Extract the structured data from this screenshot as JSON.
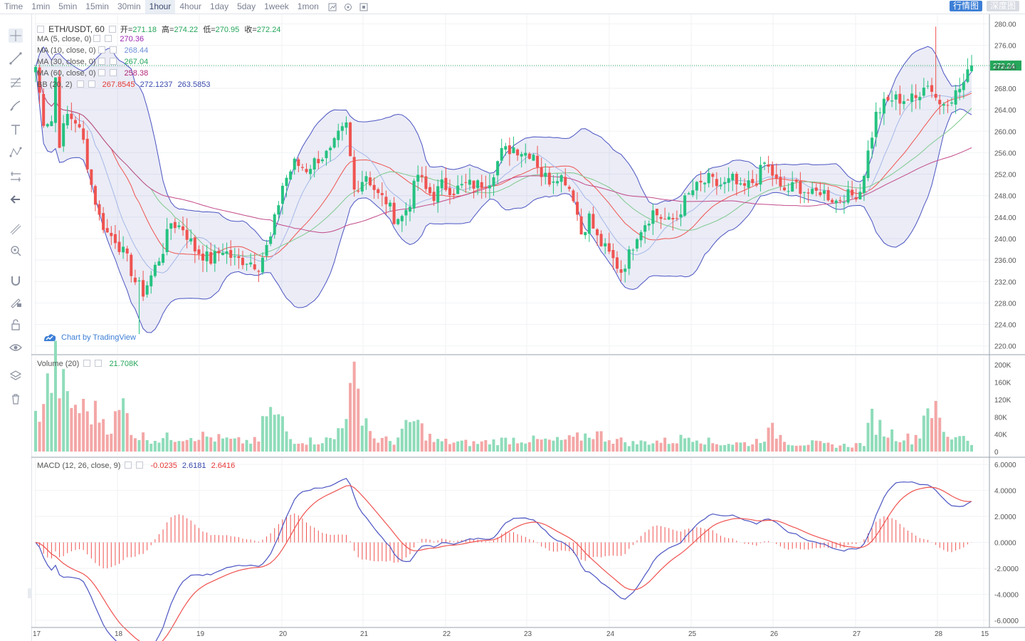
{
  "toolbar": {
    "timeframes": [
      "Time",
      "1min",
      "5min",
      "15min",
      "30min",
      "1hour",
      "4hour",
      "1day",
      "5day",
      "1week",
      "1mon"
    ],
    "active": "1hour",
    "icons": [
      "candle-type-icon",
      "indicators-icon",
      "fullscreen-icon"
    ],
    "right_buttons": [
      {
        "label": "行情图",
        "active": true
      },
      {
        "label": "深度图",
        "active": false
      }
    ]
  },
  "left_tools": [
    "crosshair-icon",
    "trendline-icon",
    "fib-icon",
    "brush-icon",
    "text-icon",
    "pattern-icon",
    "measure-icon",
    "back-arrow-icon",
    "ruler-icon",
    "zoom-icon",
    "magnet-icon",
    "lock-draw-icon",
    "lock-icon",
    "eye-icon",
    "layers-icon",
    "trash-icon"
  ],
  "legend": {
    "symbol": "ETH/USDT, 60",
    "open_label": "开",
    "open": "271.18",
    "high_label": "高",
    "high": "274.22",
    "low_label": "低",
    "low": "270.95",
    "close_label": "收",
    "close": "272.24",
    "ma": [
      {
        "name": "MA (5, close, 0)",
        "value": "270.36",
        "color": "#9c27b0"
      },
      {
        "name": "MA (10, close, 0)",
        "value": "268.44",
        "color": "#6c8fd6"
      },
      {
        "name": "MA (30, close, 0)",
        "value": "267.04",
        "color": "#26a65b"
      },
      {
        "name": "MA (60, close, 0)",
        "value": "258.38",
        "color": "#b0277a"
      }
    ],
    "bb": {
      "name": "BB (20, 2)",
      "values": [
        "267.8545",
        "272.1237",
        "263.5853"
      ],
      "colors": [
        "#e53935",
        "#3949ab",
        "#3949ab"
      ]
    },
    "volume": {
      "name": "Volume (20)",
      "value": "21.708K"
    },
    "macd": {
      "name": "MACD (12, 26, close, 9)",
      "values": [
        "-0.0235",
        "2.6181",
        "2.6416"
      ],
      "colors": [
        "#e53935",
        "#3949ab",
        "#e53935"
      ]
    }
  },
  "watermark": "Chart by TradingView",
  "last_price": "272.24",
  "chart_data": {
    "type": "candlestick",
    "symbol": "ETH/USDT",
    "interval": "60",
    "price_axis": {
      "ticks": [
        "280.00",
        "276.00",
        "272.00",
        "268.00",
        "264.00",
        "260.00",
        "256.00",
        "252.00",
        "248.00",
        "244.00",
        "240.00",
        "236.00",
        "232.00",
        "228.00",
        "224.00",
        "220.00"
      ],
      "range": [
        218.5,
        281.8
      ]
    },
    "volume_axis": {
      "ticks": [
        "200K",
        "160K",
        "120K",
        "80K",
        "40K",
        "0"
      ],
      "range": [
        0,
        220000
      ]
    },
    "macd_axis": {
      "ticks": [
        "6.0000",
        "4.0000",
        "2.0000",
        "0.0000",
        "-2.0000",
        "-4.0000",
        "-6.0000"
      ],
      "range": [
        -6.5,
        6.5
      ]
    },
    "x_axis": {
      "ticks": [
        "17",
        "18",
        "19",
        "20",
        "21",
        "22",
        "23",
        "24",
        "25",
        "26",
        "27",
        "28",
        "15"
      ]
    },
    "close_anchors": [
      [
        0,
        272
      ],
      [
        2,
        262
      ],
      [
        4,
        262
      ],
      [
        5,
        270
      ],
      [
        6,
        258
      ],
      [
        8,
        263
      ],
      [
        10,
        262
      ],
      [
        12,
        258
      ],
      [
        14,
        250
      ],
      [
        16,
        244
      ],
      [
        18,
        241
      ],
      [
        20,
        240
      ],
      [
        23,
        236
      ],
      [
        25,
        232
      ],
      [
        27,
        230
      ],
      [
        29,
        233
      ],
      [
        32,
        238
      ],
      [
        34,
        243
      ],
      [
        37,
        242
      ],
      [
        40,
        238
      ],
      [
        44,
        236
      ],
      [
        47,
        238
      ],
      [
        50,
        236
      ],
      [
        53,
        236
      ],
      [
        56,
        235
      ],
      [
        59,
        240
      ],
      [
        62,
        250
      ],
      [
        65,
        254
      ],
      [
        68,
        253
      ],
      [
        71,
        255
      ],
      [
        74,
        256
      ],
      [
        76,
        259
      ],
      [
        78,
        261
      ],
      [
        80,
        249
      ],
      [
        83,
        252
      ],
      [
        86,
        248
      ],
      [
        88,
        247
      ],
      [
        90,
        244
      ],
      [
        92,
        244
      ],
      [
        94,
        247
      ],
      [
        96,
        252
      ],
      [
        98,
        249
      ],
      [
        100,
        248
      ],
      [
        102,
        250
      ],
      [
        105,
        249
      ],
      [
        108,
        250
      ],
      [
        111,
        250
      ],
      [
        114,
        251
      ],
      [
        117,
        256
      ],
      [
        120,
        257
      ],
      [
        123,
        256
      ],
      [
        125,
        256
      ],
      [
        127,
        252
      ],
      [
        129,
        251
      ],
      [
        131,
        252
      ],
      [
        133,
        251
      ],
      [
        135,
        248
      ],
      [
        137,
        241
      ],
      [
        139,
        244
      ],
      [
        141,
        240
      ],
      [
        143,
        238
      ],
      [
        145,
        236
      ],
      [
        147,
        234
      ],
      [
        149,
        237
      ],
      [
        151,
        241
      ],
      [
        153,
        243
      ],
      [
        155,
        245
      ],
      [
        157,
        244
      ],
      [
        159,
        243
      ],
      [
        161,
        244
      ],
      [
        163,
        247
      ],
      [
        165,
        249
      ],
      [
        167,
        250
      ],
      [
        169,
        251
      ],
      [
        171,
        250
      ],
      [
        173,
        250
      ],
      [
        175,
        251
      ],
      [
        177,
        249
      ],
      [
        179,
        250
      ],
      [
        181,
        251
      ],
      [
        183,
        254
      ],
      [
        185,
        252
      ],
      [
        187,
        249
      ],
      [
        189,
        249
      ],
      [
        191,
        250
      ],
      [
        193,
        249
      ],
      [
        195,
        248
      ],
      [
        197,
        249
      ],
      [
        199,
        248
      ],
      [
        201,
        247
      ],
      [
        203,
        248
      ],
      [
        205,
        248
      ],
      [
        207,
        249
      ],
      [
        209,
        256
      ],
      [
        211,
        263
      ],
      [
        213,
        265
      ],
      [
        215,
        266
      ],
      [
        217,
        266
      ],
      [
        219,
        266
      ],
      [
        221,
        266
      ],
      [
        223,
        269
      ],
      [
        225,
        268
      ],
      [
        227,
        265
      ],
      [
        229,
        266
      ],
      [
        231,
        267
      ],
      [
        233,
        269
      ],
      [
        235,
        272
      ]
    ],
    "anchor_high_low_notes": "Peak high ~279.5 near bar 226; low ~222 near bar 26.",
    "volume_anchors": [
      [
        0,
        80
      ],
      [
        5,
        200
      ],
      [
        8,
        120
      ],
      [
        12,
        100
      ],
      [
        16,
        90
      ],
      [
        19,
        60
      ],
      [
        22,
        110
      ],
      [
        25,
        40
      ],
      [
        30,
        30
      ],
      [
        40,
        40
      ],
      [
        50,
        25
      ],
      [
        56,
        25
      ],
      [
        58,
        100
      ],
      [
        62,
        70
      ],
      [
        64,
        30
      ],
      [
        70,
        25
      ],
      [
        75,
        30
      ],
      [
        80,
        160
      ],
      [
        85,
        30
      ],
      [
        90,
        25
      ],
      [
        95,
        75
      ],
      [
        100,
        25
      ],
      [
        110,
        20
      ],
      [
        115,
        25
      ],
      [
        120,
        30
      ],
      [
        130,
        25
      ],
      [
        135,
        30
      ],
      [
        140,
        45
      ],
      [
        145,
        30
      ],
      [
        150,
        20
      ],
      [
        155,
        25
      ],
      [
        160,
        25
      ],
      [
        165,
        40
      ],
      [
        170,
        20
      ],
      [
        175,
        20
      ],
      [
        180,
        20
      ],
      [
        185,
        50
      ],
      [
        190,
        20
      ],
      [
        195,
        20
      ],
      [
        200,
        15
      ],
      [
        205,
        15
      ],
      [
        208,
        20
      ],
      [
        210,
        80
      ],
      [
        213,
        50
      ],
      [
        216,
        40
      ],
      [
        220,
        30
      ],
      [
        222,
        45
      ],
      [
        224,
        130
      ],
      [
        226,
        90
      ],
      [
        229,
        30
      ],
      [
        232,
        45
      ],
      [
        235,
        25
      ]
    ],
    "macd_note": "MACD 2.6181, signal 2.6416, histogram -0.0235"
  }
}
